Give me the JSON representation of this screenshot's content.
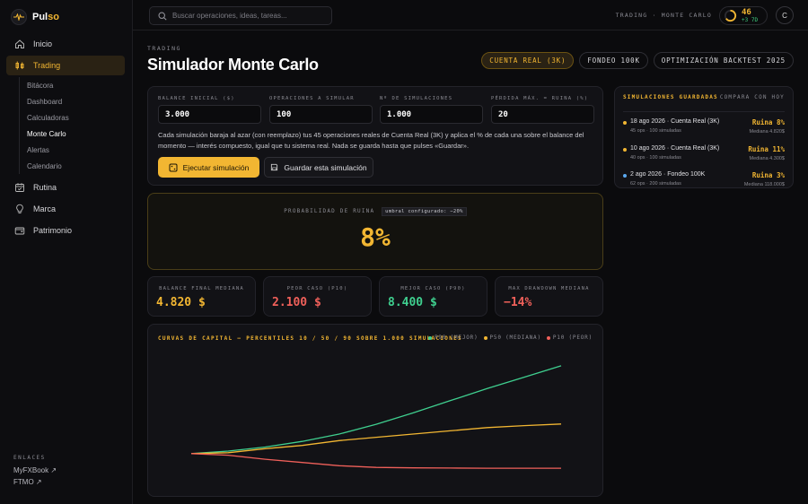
{
  "brand": {
    "name_main": "Pul",
    "name_accent": "so"
  },
  "sidebar": {
    "items": [
      {
        "label": "Inicio",
        "icon": "home-icon"
      },
      {
        "label": "Trading",
        "icon": "candles-icon",
        "active": true
      },
      {
        "label": "Rutina",
        "icon": "calendar-icon"
      },
      {
        "label": "Marca",
        "icon": "lightbulb-icon"
      },
      {
        "label": "Patrimonio",
        "icon": "wallet-icon"
      }
    ],
    "sub_items": [
      "Bitácora",
      "Dashboard",
      "Calculadoras",
      "Monte Carlo",
      "Alertas",
      "Calendario"
    ],
    "current_sub": "Monte Carlo",
    "links_title": "ENLACES",
    "links": [
      "MyFXBook ↗",
      "FTMO ↗"
    ]
  },
  "topbar": {
    "search_placeholder": "Buscar operaciones, ideas, tareas...",
    "breadcrumb": "TRADING · MONTE CARLO",
    "streak_value": "46",
    "streak_delta": "+3 7D",
    "avatar": "C"
  },
  "header": {
    "eyebrow": "TRADING",
    "title": "Simulador Monte Carlo",
    "tabs": [
      "CUENTA REAL (3K)",
      "FONDEO 100K",
      "OPTIMIZACIÓN BACKTEST 2025"
    ],
    "active_tab": 0
  },
  "form": {
    "fields": [
      {
        "label": "BALANCE INICIAL ($)",
        "value": "3.000"
      },
      {
        "label": "OPERACIONES A SIMULAR",
        "value": "100"
      },
      {
        "label": "Nº DE SIMULACIONES",
        "value": "1.000"
      },
      {
        "label": "PÉRDIDA MÁX. = RUINA (%)",
        "value": "20"
      }
    ],
    "description": "Cada simulación baraja al azar (con reemplazo) tus 45 operaciones reales de Cuenta Real (3K) y aplica el % de cada una sobre el balance del momento — interés compuesto, igual que tu sistema real. Nada se guarda hasta que pulses «Guardar».",
    "run_label": "Ejecutar simulación",
    "save_label": "Guardar esta simulación"
  },
  "ruin": {
    "label": "PROBABILIDAD DE RUINA",
    "threshold": "umbral configurado: −20%",
    "value": "8%"
  },
  "stats": [
    {
      "label": "BALANCE FINAL MEDIANA",
      "value": "4.820 $",
      "color": "#f2b632"
    },
    {
      "label": "PEOR CASO (P10)",
      "value": "2.100 $",
      "color": "#f0605a"
    },
    {
      "label": "MEJOR CASO (P90)",
      "value": "8.400 $",
      "color": "#3fcf8f"
    },
    {
      "label": "MAX DRAWDOWN MEDIANA",
      "value": "−14%",
      "color": "#f0605a"
    }
  ],
  "chart_data": {
    "type": "line",
    "title": "CURVAS DE CAPITAL — PERCENTILES 10 / 50 / 90 SOBRE 1.000 SIMULACIONES",
    "x": [
      0,
      10,
      20,
      30,
      40,
      50,
      60,
      70,
      80,
      90,
      100
    ],
    "series": [
      {
        "name": "P90 (MEJOR)",
        "color": "#3fcf8f",
        "values": [
          3000,
          3150,
          3400,
          3750,
          4200,
          4800,
          5500,
          6250,
          7000,
          7700,
          8400
        ]
      },
      {
        "name": "P50 (MEDIANA)",
        "color": "#f2b632",
        "values": [
          3000,
          3050,
          3300,
          3500,
          3800,
          4000,
          4200,
          4400,
          4600,
          4720,
          4820
        ]
      },
      {
        "name": "P10 (PEOR)",
        "color": "#f0605a",
        "values": [
          3000,
          2900,
          2650,
          2450,
          2250,
          2150,
          2120,
          2110,
          2100,
          2100,
          2100
        ]
      }
    ],
    "xlim": [
      0,
      100
    ],
    "ylim": [
      1000,
      9000
    ],
    "grid": false
  },
  "saved": {
    "title": "SIMULACIONES GUARDADAS",
    "compare": "COMPARA CON HOY",
    "items": [
      {
        "name": "18 ago 2026 · Cuenta Real (3K)",
        "meta": "45 ops · 100 simuladas",
        "ruin": "Ruina 8%",
        "ruin_color": "#f2b632",
        "median": "Mediana 4.820$",
        "dot": "#f2b632"
      },
      {
        "name": "10 ago 2026 · Cuenta Real (3K)",
        "meta": "40 ops · 100 simuladas",
        "ruin": "Ruina 11%",
        "ruin_color": "#f2b632",
        "median": "Mediana 4.300$",
        "dot": "#f2b632"
      },
      {
        "name": "2 ago 2026 · Fondeo 100K",
        "meta": "62 ops · 200 simuladas",
        "ruin": "Ruina 3%",
        "ruin_color": "#f2b632",
        "median": "Mediana 118.000$",
        "dot": "#5aa8f0"
      }
    ]
  }
}
